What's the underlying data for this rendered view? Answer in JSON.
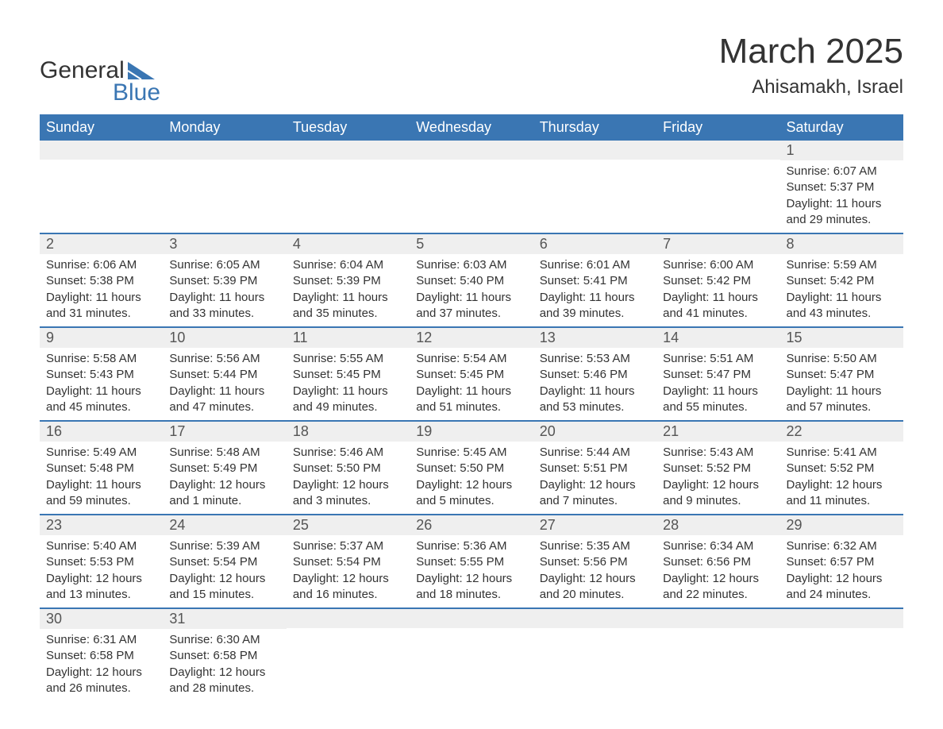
{
  "brand": {
    "name": "General",
    "sub": "Blue"
  },
  "title": {
    "month": "March 2025",
    "location": "Ahisamakh, Israel"
  },
  "colors": {
    "header_bg": "#3a76b3",
    "header_text": "#ffffff",
    "daynum_bg": "#efefef",
    "row_divider": "#3a76b3",
    "body_text": "#333333",
    "logo_accent": "#3a76b3"
  },
  "typography": {
    "title_month_pt": 44,
    "title_loc_pt": 24,
    "header_pt": 18,
    "daynum_pt": 18,
    "cell_pt": 15
  },
  "layout": {
    "columns": 7,
    "leading_blanks": 6
  },
  "weekdays": [
    "Sunday",
    "Monday",
    "Tuesday",
    "Wednesday",
    "Thursday",
    "Friday",
    "Saturday"
  ],
  "days": [
    {
      "n": 1,
      "sunrise": "6:07 AM",
      "sunset": "5:37 PM",
      "daylight": "11 hours and 29 minutes."
    },
    {
      "n": 2,
      "sunrise": "6:06 AM",
      "sunset": "5:38 PM",
      "daylight": "11 hours and 31 minutes."
    },
    {
      "n": 3,
      "sunrise": "6:05 AM",
      "sunset": "5:39 PM",
      "daylight": "11 hours and 33 minutes."
    },
    {
      "n": 4,
      "sunrise": "6:04 AM",
      "sunset": "5:39 PM",
      "daylight": "11 hours and 35 minutes."
    },
    {
      "n": 5,
      "sunrise": "6:03 AM",
      "sunset": "5:40 PM",
      "daylight": "11 hours and 37 minutes."
    },
    {
      "n": 6,
      "sunrise": "6:01 AM",
      "sunset": "5:41 PM",
      "daylight": "11 hours and 39 minutes."
    },
    {
      "n": 7,
      "sunrise": "6:00 AM",
      "sunset": "5:42 PM",
      "daylight": "11 hours and 41 minutes."
    },
    {
      "n": 8,
      "sunrise": "5:59 AM",
      "sunset": "5:42 PM",
      "daylight": "11 hours and 43 minutes."
    },
    {
      "n": 9,
      "sunrise": "5:58 AM",
      "sunset": "5:43 PM",
      "daylight": "11 hours and 45 minutes."
    },
    {
      "n": 10,
      "sunrise": "5:56 AM",
      "sunset": "5:44 PM",
      "daylight": "11 hours and 47 minutes."
    },
    {
      "n": 11,
      "sunrise": "5:55 AM",
      "sunset": "5:45 PM",
      "daylight": "11 hours and 49 minutes."
    },
    {
      "n": 12,
      "sunrise": "5:54 AM",
      "sunset": "5:45 PM",
      "daylight": "11 hours and 51 minutes."
    },
    {
      "n": 13,
      "sunrise": "5:53 AM",
      "sunset": "5:46 PM",
      "daylight": "11 hours and 53 minutes."
    },
    {
      "n": 14,
      "sunrise": "5:51 AM",
      "sunset": "5:47 PM",
      "daylight": "11 hours and 55 minutes."
    },
    {
      "n": 15,
      "sunrise": "5:50 AM",
      "sunset": "5:47 PM",
      "daylight": "11 hours and 57 minutes."
    },
    {
      "n": 16,
      "sunrise": "5:49 AM",
      "sunset": "5:48 PM",
      "daylight": "11 hours and 59 minutes."
    },
    {
      "n": 17,
      "sunrise": "5:48 AM",
      "sunset": "5:49 PM",
      "daylight": "12 hours and 1 minute."
    },
    {
      "n": 18,
      "sunrise": "5:46 AM",
      "sunset": "5:50 PM",
      "daylight": "12 hours and 3 minutes."
    },
    {
      "n": 19,
      "sunrise": "5:45 AM",
      "sunset": "5:50 PM",
      "daylight": "12 hours and 5 minutes."
    },
    {
      "n": 20,
      "sunrise": "5:44 AM",
      "sunset": "5:51 PM",
      "daylight": "12 hours and 7 minutes."
    },
    {
      "n": 21,
      "sunrise": "5:43 AM",
      "sunset": "5:52 PM",
      "daylight": "12 hours and 9 minutes."
    },
    {
      "n": 22,
      "sunrise": "5:41 AM",
      "sunset": "5:52 PM",
      "daylight": "12 hours and 11 minutes."
    },
    {
      "n": 23,
      "sunrise": "5:40 AM",
      "sunset": "5:53 PM",
      "daylight": "12 hours and 13 minutes."
    },
    {
      "n": 24,
      "sunrise": "5:39 AM",
      "sunset": "5:54 PM",
      "daylight": "12 hours and 15 minutes."
    },
    {
      "n": 25,
      "sunrise": "5:37 AM",
      "sunset": "5:54 PM",
      "daylight": "12 hours and 16 minutes."
    },
    {
      "n": 26,
      "sunrise": "5:36 AM",
      "sunset": "5:55 PM",
      "daylight": "12 hours and 18 minutes."
    },
    {
      "n": 27,
      "sunrise": "5:35 AM",
      "sunset": "5:56 PM",
      "daylight": "12 hours and 20 minutes."
    },
    {
      "n": 28,
      "sunrise": "6:34 AM",
      "sunset": "6:56 PM",
      "daylight": "12 hours and 22 minutes."
    },
    {
      "n": 29,
      "sunrise": "6:32 AM",
      "sunset": "6:57 PM",
      "daylight": "12 hours and 24 minutes."
    },
    {
      "n": 30,
      "sunrise": "6:31 AM",
      "sunset": "6:58 PM",
      "daylight": "12 hours and 26 minutes."
    },
    {
      "n": 31,
      "sunrise": "6:30 AM",
      "sunset": "6:58 PM",
      "daylight": "12 hours and 28 minutes."
    }
  ],
  "labels": {
    "sunrise": "Sunrise: ",
    "sunset": "Sunset: ",
    "daylight": "Daylight: "
  }
}
